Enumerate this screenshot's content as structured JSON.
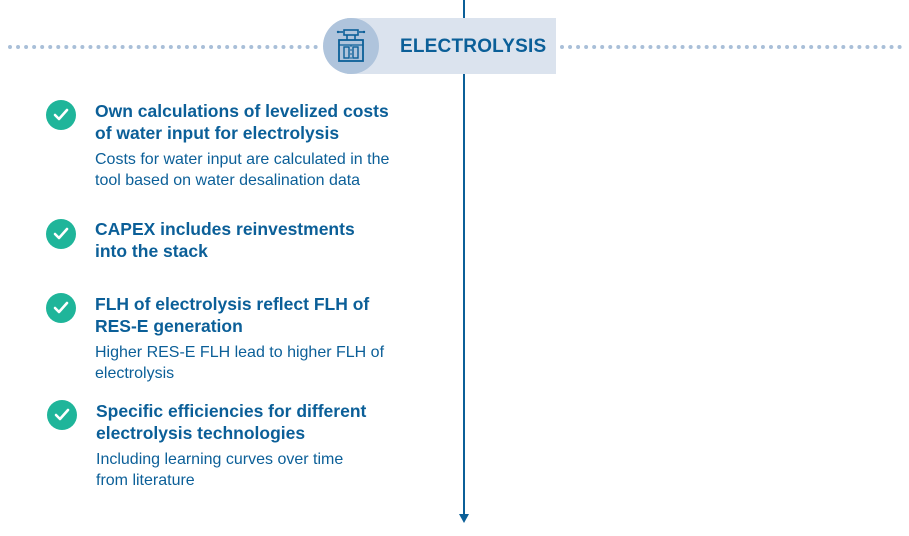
{
  "header": {
    "title": "ELECTROLYSIS",
    "icon": "electrolyzer-icon"
  },
  "colors": {
    "primary": "#0b5f98",
    "check": "#1fb59a",
    "header_bg": "#dbe3ee",
    "icon_bg": "#afc4dc",
    "dotted": "#a9bfd8"
  },
  "items": [
    {
      "title": "Own calculations of levelized costs\nof water input for electrolysis",
      "description": "Costs for water input are calculated in the\ntool based on water desalination data"
    },
    {
      "title": "CAPEX includes reinvestments\ninto the stack",
      "description": ""
    },
    {
      "title": "FLH of electrolysis reflect FLH of\nRES-E generation",
      "description": "Higher RES-E FLH lead to higher FLH of\nelectrolysis"
    },
    {
      "title": "Specific efficiencies for different\nelectrolysis technologies",
      "description": "Including learning curves over time\nfrom literature"
    }
  ]
}
